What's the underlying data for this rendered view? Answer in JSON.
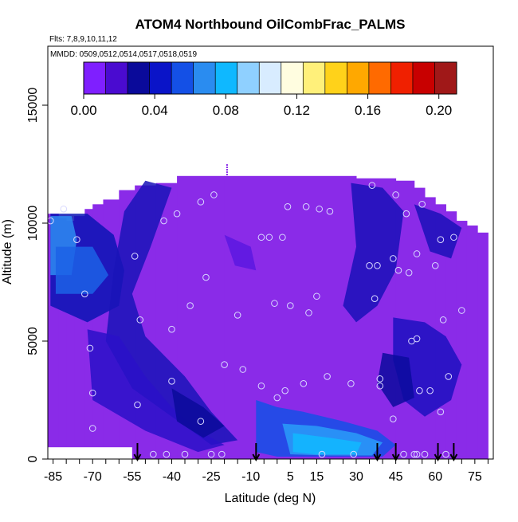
{
  "chart_data": {
    "type": "heatmap",
    "title": "ATOM4 Northbound OilCombFrac_PALMS",
    "subtitle_flights": "Flts: 7,8,9,10,11,12",
    "subtitle_dates": "MMDD: 0509,0512,0514,0517,0518,0519",
    "xlabel": "Latitude (deg N)",
    "ylabel": "Altitude (m)",
    "xlim": [
      -87,
      82
    ],
    "ylim": [
      0,
      17500
    ],
    "x_tick_labels": [
      "-85",
      "-70",
      "-55",
      "-40",
      "-25",
      "-10",
      "5",
      "15",
      "30",
      "45",
      "60",
      "75"
    ],
    "y_tick_labels": [
      "0",
      "5000",
      "10000",
      "15000"
    ],
    "colorbar": {
      "tick_labels": [
        "0.00",
        "0.04",
        "0.08",
        "0.12",
        "0.16",
        "0.20"
      ],
      "range": [
        0,
        0.21
      ],
      "colors": [
        "#7f1fff",
        "#4a0bd0",
        "#0a0a9a",
        "#0a14c8",
        "#1450e6",
        "#2a8cf0",
        "#0fb8ff",
        "#8fd0ff",
        "#d8ecff",
        "#fffde0",
        "#fff07a",
        "#ffd21a",
        "#ffa800",
        "#ff6a00",
        "#f02000",
        "#c80000",
        "#a01818"
      ]
    },
    "vertical_profile_arrows_lat": [
      -53,
      -8,
      38,
      45,
      61,
      67
    ],
    "sample_points": [
      [
        -86,
        10100
      ],
      [
        -81,
        10600
      ],
      [
        -76,
        9300
      ],
      [
        -73,
        7000
      ],
      [
        -71,
        4700
      ],
      [
        -70,
        2800
      ],
      [
        -70,
        1300
      ],
      [
        -54,
        8600
      ],
      [
        -53,
        2300
      ],
      [
        -52,
        5900
      ],
      [
        -47,
        200
      ],
      [
        -42,
        200
      ],
      [
        -43,
        10100
      ],
      [
        -40,
        3300
      ],
      [
        -40,
        5500
      ],
      [
        -38,
        10400
      ],
      [
        -35,
        200
      ],
      [
        -33,
        6500
      ],
      [
        -29,
        10900
      ],
      [
        -29,
        1600
      ],
      [
        -27,
        7700
      ],
      [
        -25,
        200
      ],
      [
        -24,
        11200
      ],
      [
        -21,
        200
      ],
      [
        -20,
        4000
      ],
      [
        -15,
        6100
      ],
      [
        -13,
        3800
      ],
      [
        -6,
        3100
      ],
      [
        -6,
        9400
      ],
      [
        -3,
        9400
      ],
      [
        -1,
        6600
      ],
      [
        0,
        2600
      ],
      [
        2,
        9400
      ],
      [
        3,
        2900
      ],
      [
        4,
        10700
      ],
      [
        5,
        6500
      ],
      [
        10,
        3200
      ],
      [
        11,
        10700
      ],
      [
        12,
        6200
      ],
      [
        15,
        6900
      ],
      [
        16,
        10600
      ],
      [
        17,
        200
      ],
      [
        19,
        3500
      ],
      [
        20,
        10500
      ],
      [
        28,
        3200
      ],
      [
        29,
        200
      ],
      [
        35,
        8200
      ],
      [
        36,
        11600
      ],
      [
        37,
        6800
      ],
      [
        38,
        8200
      ],
      [
        39,
        3400
      ],
      [
        39,
        3100
      ],
      [
        44,
        1700
      ],
      [
        44,
        8500
      ],
      [
        45,
        11200
      ],
      [
        46,
        8000
      ],
      [
        48,
        200
      ],
      [
        49,
        10400
      ],
      [
        50,
        7900
      ],
      [
        51,
        5000
      ],
      [
        52,
        200
      ],
      [
        53,
        5100
      ],
      [
        53,
        8700
      ],
      [
        54,
        2900
      ],
      [
        55,
        10800
      ],
      [
        56,
        200
      ],
      [
        58,
        2900
      ],
      [
        60,
        8200
      ],
      [
        62,
        9300
      ],
      [
        63,
        5900
      ],
      [
        64,
        200
      ],
      [
        65,
        3500
      ],
      [
        67,
        9400
      ],
      [
        70,
        6300
      ],
      [
        62,
        2000
      ],
      [
        53,
        200
      ]
    ]
  }
}
